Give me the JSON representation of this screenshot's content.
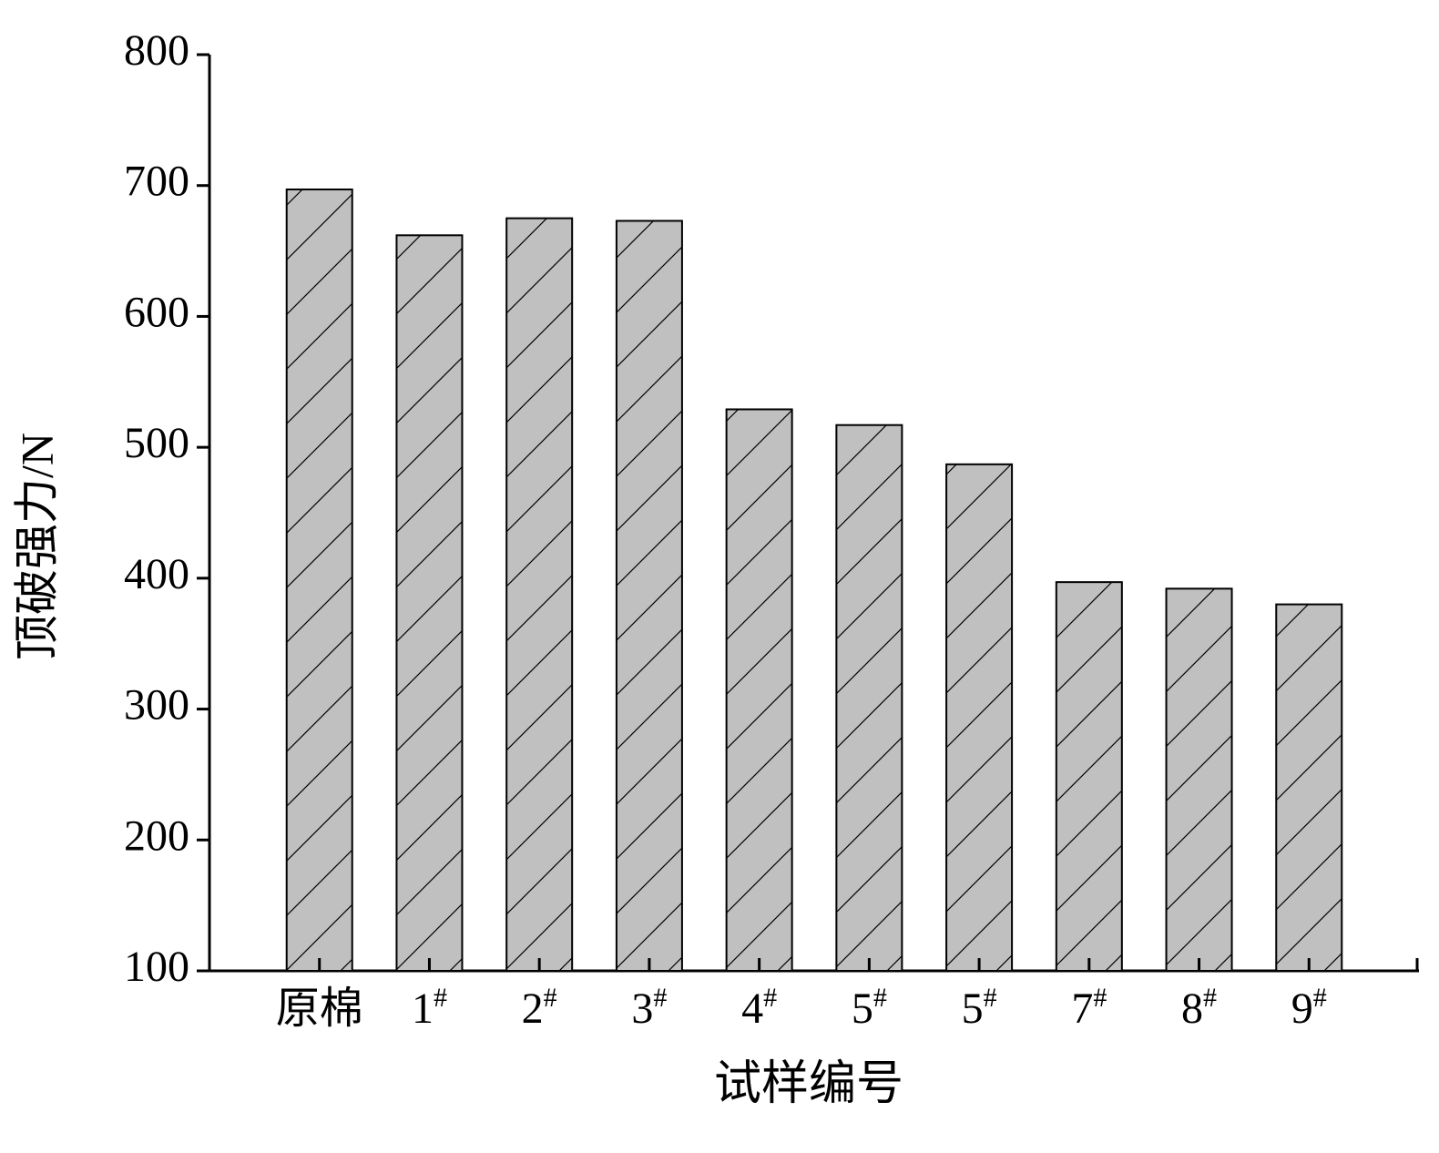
{
  "chart_data": {
    "type": "bar",
    "x_label": "试样编号",
    "y_label": "顶破强力/N",
    "categories": [
      "原棉",
      "1#",
      "2#",
      "3#",
      "4#",
      "5#",
      "5#",
      "7#",
      "8#",
      "9#"
    ],
    "values": [
      697,
      662,
      675,
      673,
      529,
      517,
      487,
      397,
      392,
      380
    ],
    "color": "#c0c0c0",
    "ylim": [
      100,
      800
    ],
    "yticks": [
      100,
      200,
      300,
      400,
      500,
      600,
      700,
      800
    ],
    "grid": false
  }
}
